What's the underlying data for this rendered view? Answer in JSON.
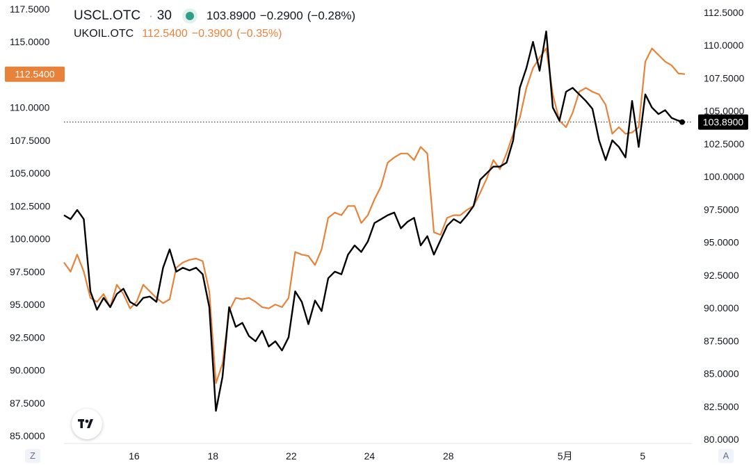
{
  "legend": {
    "uscl_symbol": "USCL.OTC",
    "interval": "30",
    "uscl_price": "103.8900",
    "uscl_change": "−0.2900",
    "uscl_change_pct": "(−0.28%)",
    "ukoil_symbol": "UKOIL.OTC",
    "ukoil_price": "112.5400",
    "ukoil_change": "−0.3900",
    "ukoil_change_pct": "(−0.35%)"
  },
  "colors": {
    "uscl": "#000000",
    "ukoil": "#e8823a",
    "ukoil_badge": "#e8823a",
    "uscl_badge": "#000000",
    "status_dot": "#2e9f86"
  },
  "corners": {
    "left": "Z",
    "right": "A"
  },
  "chart_data": {
    "type": "line",
    "x_tick_labels": [
      "16",
      "18",
      "22",
      "24",
      "28",
      "5月",
      "5"
    ],
    "left_axis": {
      "ticks": [
        "117.5000",
        "115.0000",
        "112.5000",
        "110.0000",
        "107.5000",
        "105.0000",
        "102.5000",
        "100.0000",
        "97.5000",
        "95.0000",
        "92.5000",
        "90.0000",
        "87.5000",
        "85.0000"
      ],
      "range": [
        85.0,
        117.5
      ],
      "last_value_label": "112.5400"
    },
    "right_axis": {
      "ticks": [
        "112.5000",
        "110.0000",
        "107.5000",
        "105.0000",
        "102.5000",
        "100.0000",
        "97.5000",
        "95.0000",
        "92.5000",
        "90.0000",
        "87.5000",
        "85.0000",
        "82.5000",
        "80.0000"
      ],
      "range": [
        80.0,
        112.5
      ],
      "last_value_label": "103.8900"
    },
    "series": [
      {
        "name": "UKOIL.OTC",
        "axis": "left",
        "values": [
          98.2,
          97.5,
          98.8,
          97.5,
          95.5,
          95.2,
          95.8,
          94.8,
          96.5,
          95.8,
          94.7,
          95.2,
          96.5,
          96.0,
          95.5,
          95.1,
          95.4,
          97.8,
          98.2,
          98.4,
          98.5,
          98.3,
          96.0,
          89.0,
          90.5,
          94.5,
          95.5,
          95.4,
          95.5,
          95.2,
          94.8,
          94.7,
          95.0,
          94.8,
          95.5,
          99.0,
          98.8,
          98.7,
          98.0,
          99.2,
          101.6,
          102.0,
          101.8,
          102.5,
          102.5,
          101.2,
          101.8,
          103.0,
          104.0,
          105.8,
          106.2,
          106.5,
          106.5,
          106.0,
          107.0,
          106.5,
          100.5,
          100.3,
          101.6,
          101.8,
          101.8,
          102.2,
          102.5,
          103.5,
          104.6,
          106.0,
          105.3,
          106.5,
          108.0,
          109.2,
          111.5,
          113.0,
          113.8,
          114.5,
          111.0,
          109.0,
          108.5,
          109.6,
          111.2,
          111.5,
          111.2,
          111.0,
          110.2,
          108.0,
          108.5,
          108.0,
          108.1,
          108.5,
          113.5,
          114.5,
          114.0,
          113.5,
          113.2,
          112.6,
          112.54
        ]
      },
      {
        "name": "USCL.OTC",
        "axis": "right",
        "values": [
          96.8,
          96.5,
          97.2,
          96.5,
          91.0,
          89.6,
          90.5,
          89.8,
          90.8,
          91.2,
          90.2,
          89.9,
          90.5,
          90.6,
          90.2,
          92.8,
          94.2,
          92.5,
          92.8,
          92.6,
          92.8,
          92.3,
          89.8,
          81.9,
          84.5,
          89.8,
          88.3,
          88.6,
          87.6,
          87.2,
          88.0,
          86.8,
          87.2,
          86.5,
          87.5,
          91.0,
          90.2,
          88.5,
          90.3,
          89.5,
          92.0,
          92.5,
          92.3,
          93.8,
          94.5,
          94.0,
          94.8,
          96.2,
          96.5,
          96.8,
          97.0,
          95.8,
          96.3,
          96.6,
          94.5,
          95.2,
          93.8,
          94.9,
          96.0,
          96.5,
          96.2,
          96.8,
          97.5,
          99.5,
          100.0,
          100.5,
          100.5,
          100.8,
          102.5,
          106.5,
          108.0,
          110.0,
          107.8,
          110.8,
          105.0,
          104.0,
          106.2,
          106.5,
          106.0,
          105.5,
          104.9,
          102.5,
          101.0,
          102.5,
          102.0,
          101.2,
          105.5,
          102.0,
          106.0,
          105.0,
          104.5,
          104.8,
          104.2,
          104.0,
          103.89
        ]
      }
    ],
    "grid": false,
    "crosshair_price_line": "103.8900",
    "legend_position": "top-left"
  }
}
